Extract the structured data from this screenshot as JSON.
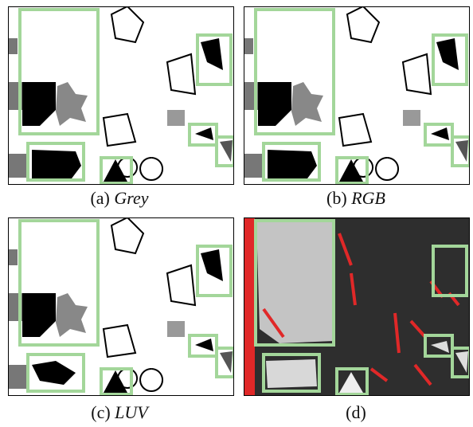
{
  "panels": [
    {
      "label": "(a)",
      "name": "Grey"
    },
    {
      "label": "(b)",
      "name": "RGB"
    },
    {
      "label": "(c)",
      "name": "LUV"
    },
    {
      "label": "(d)"
    }
  ]
}
